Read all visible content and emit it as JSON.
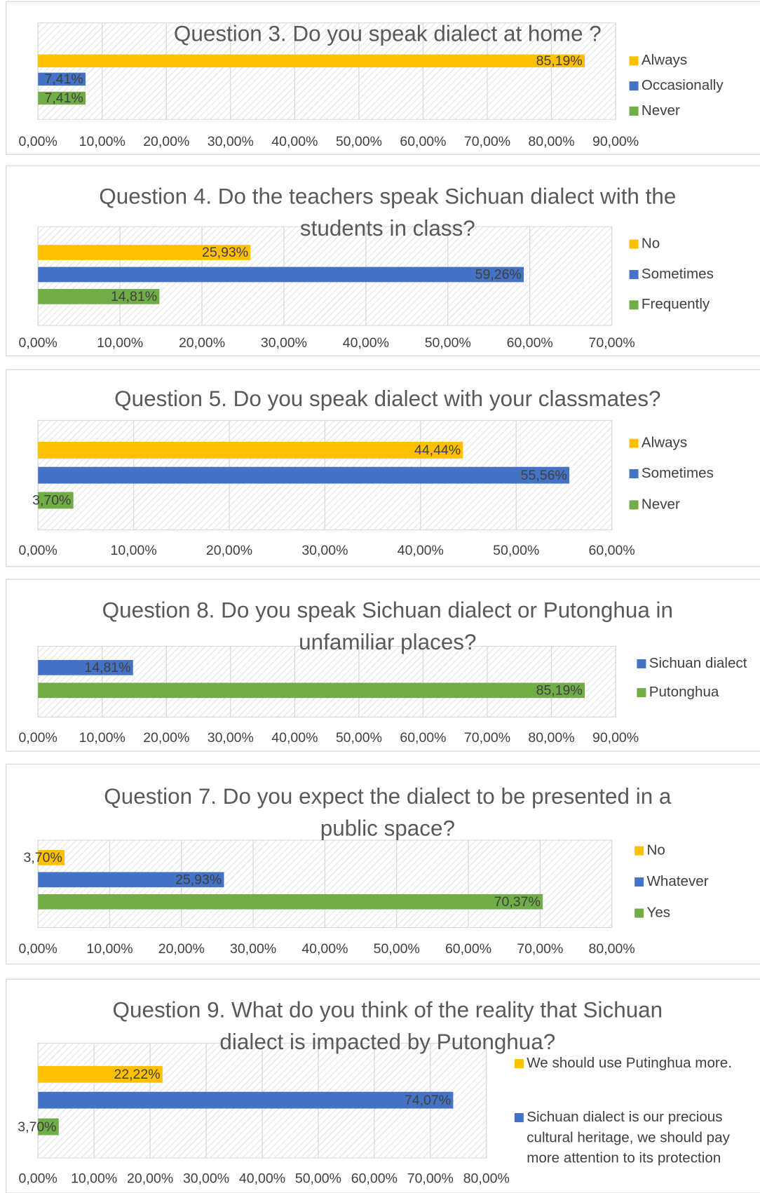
{
  "chart_data": [
    {
      "type": "bar",
      "title": "Question 3. Do you speak dialect at home ?",
      "categories": [
        "Always",
        "Occasionally",
        "Never"
      ],
      "values": [
        85.19,
        7.41,
        7.41
      ],
      "value_labels": [
        "85,19%",
        "7,41%",
        "7,41%"
      ],
      "colors": [
        "#ffc000",
        "#4472c4",
        "#70ad47"
      ],
      "xlim": [
        0,
        90
      ],
      "xticks": [
        {
          "value": 0,
          "label": "0,00%"
        },
        {
          "value": 10,
          "label": "10,00%"
        },
        {
          "value": 20,
          "label": "20,00%"
        },
        {
          "value": 30,
          "label": "30,00%"
        },
        {
          "value": 40,
          "label": "40,00%"
        },
        {
          "value": 50,
          "label": "50,00%"
        },
        {
          "value": 60,
          "label": "60,00%"
        },
        {
          "value": 70,
          "label": "70,00%"
        },
        {
          "value": 80,
          "label": "80,00%"
        },
        {
          "value": 90,
          "label": "90,00%"
        }
      ],
      "grid": true
    },
    {
      "type": "bar",
      "title": "Question 4. Do the teachers speak Sichuan dialect with the students in class?",
      "categories": [
        "No",
        "Sometimes",
        "Frequently"
      ],
      "values": [
        25.93,
        59.26,
        14.81
      ],
      "value_labels": [
        "25,93%",
        "59,26%",
        "14,81%"
      ],
      "colors": [
        "#ffc000",
        "#4472c4",
        "#70ad47"
      ],
      "xlim": [
        0,
        70
      ],
      "xticks": [
        {
          "value": 0,
          "label": "0,00%"
        },
        {
          "value": 10,
          "label": "10,00%"
        },
        {
          "value": 20,
          "label": "20,00%"
        },
        {
          "value": 30,
          "label": "30,00%"
        },
        {
          "value": 40,
          "label": "40,00%"
        },
        {
          "value": 50,
          "label": "50,00%"
        },
        {
          "value": 60,
          "label": "60,00%"
        },
        {
          "value": 70,
          "label": "70,00%"
        }
      ],
      "grid": true
    },
    {
      "type": "bar",
      "title": "Question 5. Do you speak dialect with your classmates?",
      "categories": [
        "Always",
        "Sometimes",
        "Never"
      ],
      "values": [
        44.44,
        55.56,
        3.7
      ],
      "value_labels": [
        "44,44%",
        "55,56%",
        "3,70%"
      ],
      "colors": [
        "#ffc000",
        "#4472c4",
        "#70ad47"
      ],
      "xlim": [
        0,
        60
      ],
      "xticks": [
        {
          "value": 0,
          "label": "0,00%"
        },
        {
          "value": 10,
          "label": "10,00%"
        },
        {
          "value": 20,
          "label": "20,00%"
        },
        {
          "value": 30,
          "label": "30,00%"
        },
        {
          "value": 40,
          "label": "40,00%"
        },
        {
          "value": 50,
          "label": "50,00%"
        },
        {
          "value": 60,
          "label": "60,00%"
        }
      ],
      "grid": true
    },
    {
      "type": "bar",
      "title": "Question 8. Do you speak Sichuan dialect or Putonghua in unfamiliar places?",
      "categories": [
        "Sichuan dialect",
        "Putonghua"
      ],
      "values": [
        14.81,
        85.19
      ],
      "value_labels": [
        "14,81%",
        "85,19%"
      ],
      "colors": [
        "#4472c4",
        "#70ad47"
      ],
      "xlim": [
        0,
        90
      ],
      "xticks": [
        {
          "value": 0,
          "label": "0,00%"
        },
        {
          "value": 10,
          "label": "10,00%"
        },
        {
          "value": 20,
          "label": "20,00%"
        },
        {
          "value": 30,
          "label": "30,00%"
        },
        {
          "value": 40,
          "label": "40,00%"
        },
        {
          "value": 50,
          "label": "50,00%"
        },
        {
          "value": 60,
          "label": "60,00%"
        },
        {
          "value": 70,
          "label": "70,00%"
        },
        {
          "value": 80,
          "label": "80,00%"
        },
        {
          "value": 90,
          "label": "90,00%"
        }
      ],
      "grid": true
    },
    {
      "type": "bar",
      "title": "Question 7. Do you expect the dialect to be presented in a public space?",
      "categories": [
        "No",
        "Whatever",
        "Yes"
      ],
      "values": [
        3.7,
        25.93,
        70.37
      ],
      "value_labels": [
        "3,70%",
        "25,93%",
        "70,37%"
      ],
      "colors": [
        "#ffc000",
        "#4472c4",
        "#70ad47"
      ],
      "xlim": [
        0,
        80
      ],
      "xticks": [
        {
          "value": 0,
          "label": "0,00%"
        },
        {
          "value": 10,
          "label": "10,00%"
        },
        {
          "value": 20,
          "label": "20,00%"
        },
        {
          "value": 30,
          "label": "30,00%"
        },
        {
          "value": 40,
          "label": "40,00%"
        },
        {
          "value": 50,
          "label": "50,00%"
        },
        {
          "value": 60,
          "label": "60,00%"
        },
        {
          "value": 70,
          "label": "70,00%"
        },
        {
          "value": 80,
          "label": "80,00%"
        }
      ],
      "grid": true
    },
    {
      "type": "bar",
      "title": "Question 9. What do you think of the reality that Sichuan dialect is impacted by Putonghua?",
      "categories": [
        "We should use Putinghua more.",
        "Sichuan dialect is our precious cultural heritage, we should pay more attention to its protection",
        null
      ],
      "values": [
        22.22,
        74.07,
        3.7
      ],
      "value_labels": [
        "22,22%",
        "74,07%",
        "3,70%"
      ],
      "colors": [
        "#ffc000",
        "#4472c4",
        "#70ad47"
      ],
      "xlim": [
        0,
        80
      ],
      "xticks": [
        {
          "value": 0,
          "label": "0,00%"
        },
        {
          "value": 10,
          "label": "10,00%"
        },
        {
          "value": 20,
          "label": "20,00%"
        },
        {
          "value": 30,
          "label": "30,00%"
        },
        {
          "value": 40,
          "label": "40,00%"
        },
        {
          "value": 50,
          "label": "50,00%"
        },
        {
          "value": 60,
          "label": "60,00%"
        },
        {
          "value": 70,
          "label": "70,00%"
        },
        {
          "value": 80,
          "label": "80,00%"
        }
      ],
      "grid": true
    }
  ]
}
